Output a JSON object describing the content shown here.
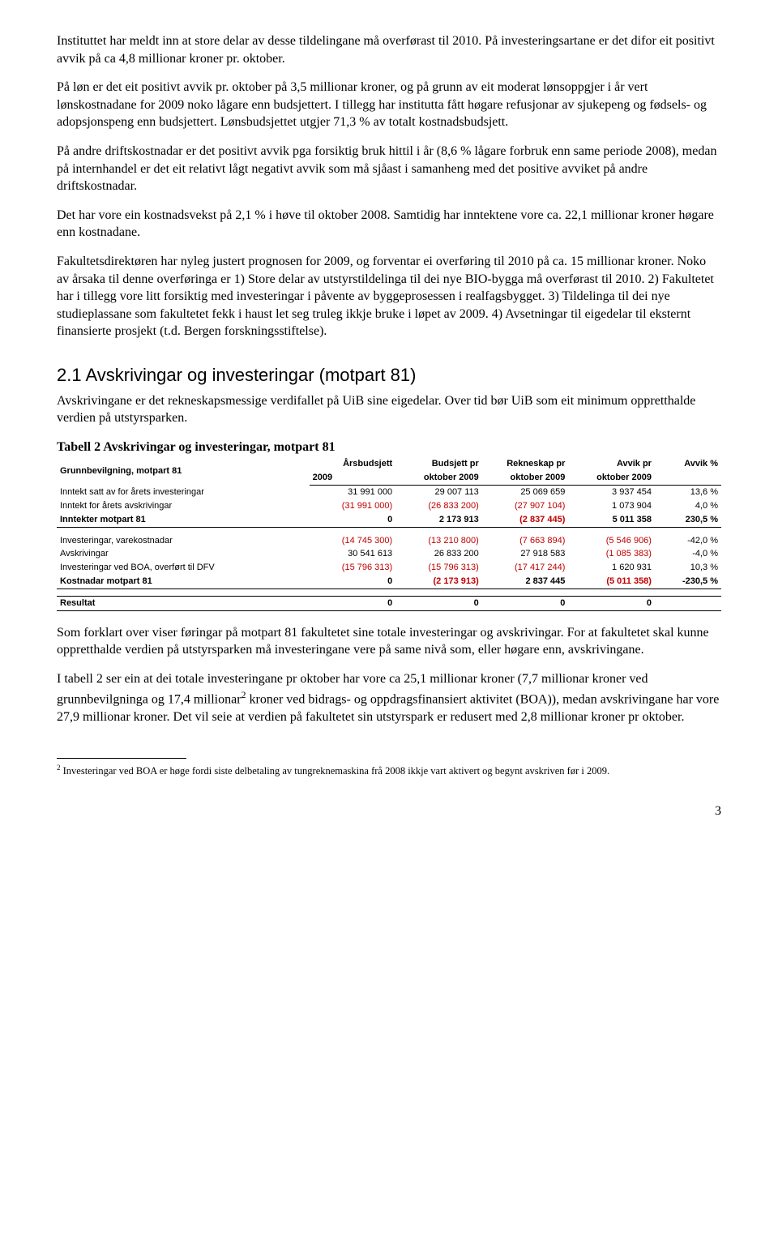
{
  "paragraphs": {
    "p1": "Instituttet har meldt inn at store delar av desse tildelingane må overførast til 2010. På investeringsartane er det difor eit positivt avvik på ca 4,8 millionar kroner pr. oktober.",
    "p2": "På løn er det eit positivt avvik pr. oktober på 3,5 millionar kroner, og på grunn av eit moderat lønsoppgjer i år vert lønskostnadane for 2009 noko lågare enn budsjettert. I tillegg har institutta fått høgare refusjonar av sjukepeng og fødsels- og adopsjonspeng enn budsjettert. Lønsbudsjettet utgjer 71,3 % av totalt kostnadsbudsjett.",
    "p3": "På andre driftskostnadar er det positivt avvik pga forsiktig bruk hittil i år (8,6 % lågare forbruk enn same periode 2008), medan på internhandel er det eit relativt lågt negativt avvik som må sjåast i samanheng med det positive avviket på andre driftskostnadar.",
    "p4": "Det har vore ein kostnadsvekst på 2,1 % i høve til oktober 2008. Samtidig har inntektene vore ca. 22,1 millionar kroner høgare enn kostnadane.",
    "p5": "Fakultetsdirektøren har nyleg justert prognosen for 2009, og forventar ei overføring til 2010 på ca. 15 millionar kroner. Noko av årsaka til denne overføringa er 1) Store delar av utstyrstildelinga til dei nye BIO-bygga må overførast til 2010. 2) Fakultetet har i tillegg vore litt forsiktig med investeringar i påvente av byggeprosessen i realfagsbygget. 3) Tildelinga til dei nye studieplassane som fakultetet fekk i haust let seg truleg ikkje bruke i løpet av 2009. 4) Avsetningar til eigedelar til eksternt finansierte prosjekt (t.d. Bergen forskningsstiftelse).",
    "p6": "Avskrivingane er det rekneskapsmessige verdifallet på UiB sine eigedelar. Over tid bør UiB som eit minimum oppretthalde verdien på utstyrsparken.",
    "p7": "Som forklart over viser føringar på motpart 81 fakultetet sine totale investeringar og avskrivingar. For at fakultetet skal kunne oppretthalde verdien på utstyrsparken må investeringane vere på same nivå som, eller høgare enn, avskrivingane.",
    "p8a": "I tabell 2 ser ein at dei totale investeringane pr oktober har vore ca 25,1 millionar kroner (7,7 millionar kroner ved grunnbevilgninga og 17,4 millionar",
    "p8b": " kroner ved bidrags- og oppdragsfinansiert aktivitet (BOA)), medan avskrivingane har vore 27,9 millionar kroner. Det vil seie at verdien på fakultetet sin utstyrspark er redusert med 2,8 millionar kroner pr oktober."
  },
  "section_heading": "2.1  Avskrivingar og investeringar (motpart 81)",
  "table": {
    "title": "Tabell 2 Avskrivingar og investeringar, motpart 81",
    "head_row_label": "Grunnbevilgning, motpart 81",
    "columns_top": [
      "Årsbudsjett",
      "Budsjett pr",
      "Rekneskap pr",
      "Avvik pr",
      "Avvik %"
    ],
    "columns_bottom": [
      "2009",
      "oktober 2009",
      "oktober 2009",
      "oktober 2009",
      ""
    ],
    "section1": [
      {
        "label": "Inntekt satt av for årets investeringar",
        "v": [
          "31 991 000",
          "29 007 113",
          "25 069 659",
          "3 937 454",
          "13,6 %"
        ],
        "neg": [
          false,
          false,
          false,
          false,
          false
        ]
      },
      {
        "label": "Inntekt for årets avskrivingar",
        "v": [
          "(31 991 000)",
          "(26 833 200)",
          "(27 907 104)",
          "1 073 904",
          "4,0 %"
        ],
        "neg": [
          true,
          true,
          true,
          false,
          false
        ]
      },
      {
        "label": "Inntekter motpart 81",
        "v": [
          "0",
          "2 173 913",
          "(2 837 445)",
          "5 011 358",
          "230,5 %"
        ],
        "neg": [
          false,
          false,
          true,
          false,
          false
        ],
        "bold": true
      }
    ],
    "section2": [
      {
        "label": "Investeringar, varekostnadar",
        "v": [
          "(14 745 300)",
          "(13 210 800)",
          "(7 663 894)",
          "(5 546 906)",
          "-42,0 %"
        ],
        "neg": [
          true,
          true,
          true,
          true,
          false
        ]
      },
      {
        "label": "Avskrivingar",
        "v": [
          "30 541 613",
          "26 833 200",
          "27 918 583",
          "(1 085 383)",
          "-4,0 %"
        ],
        "neg": [
          false,
          false,
          false,
          true,
          false
        ]
      },
      {
        "label": "Investeringar ved BOA, overført til DFV",
        "v": [
          "(15 796 313)",
          "(15 796 313)",
          "(17 417 244)",
          "1 620 931",
          "10,3 %"
        ],
        "neg": [
          true,
          true,
          true,
          false,
          false
        ]
      },
      {
        "label": "Kostnadar motpart 81",
        "v": [
          "0",
          "(2 173 913)",
          "2 837 445",
          "(5 011 358)",
          "-230,5 %"
        ],
        "neg": [
          false,
          true,
          false,
          true,
          false
        ],
        "bold": true
      }
    ],
    "result": {
      "label": "Resultat",
      "v": [
        "0",
        "0",
        "0",
        "0",
        ""
      ],
      "neg": [
        false,
        false,
        false,
        false,
        false
      ]
    }
  },
  "footnote": {
    "marker": "2",
    "text": " Investeringar ved BOA er høge fordi siste delbetaling av tungreknemaskina frå 2008 ikkje vart aktivert og begynt avskriven før i 2009."
  },
  "page_number": "3"
}
